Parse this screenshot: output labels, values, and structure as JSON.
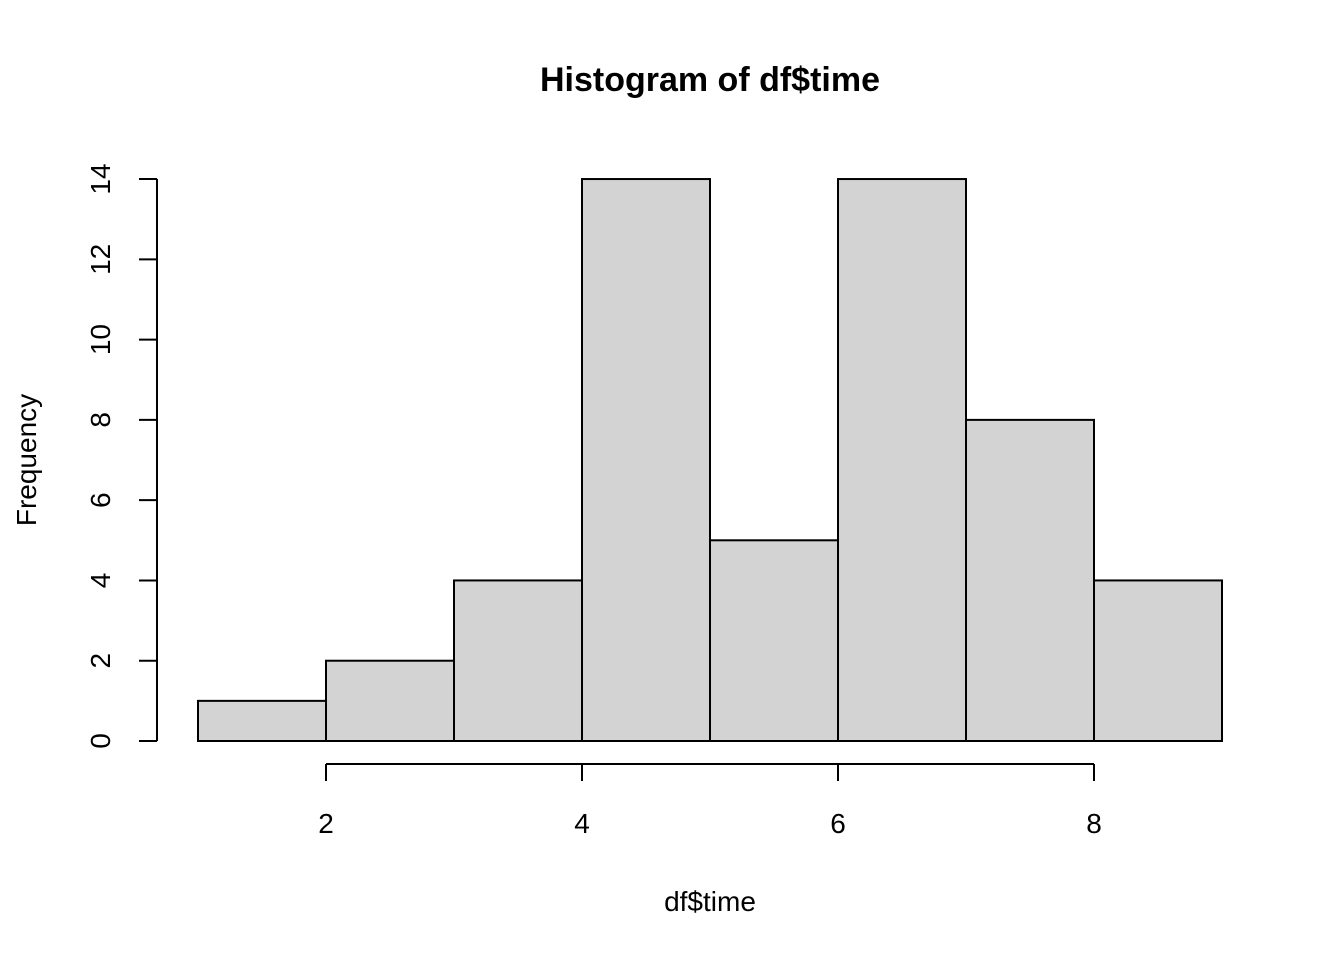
{
  "chart_data": {
    "type": "bar",
    "subtype": "histogram",
    "title": "Histogram of df$time",
    "xlabel": "df$time",
    "ylabel": "Frequency",
    "bins": [
      {
        "x0": 1,
        "x1": 2,
        "count": 1
      },
      {
        "x0": 2,
        "x1": 3,
        "count": 2
      },
      {
        "x0": 3,
        "x1": 4,
        "count": 4
      },
      {
        "x0": 4,
        "x1": 5,
        "count": 14
      },
      {
        "x0": 5,
        "x1": 6,
        "count": 5
      },
      {
        "x0": 6,
        "x1": 7,
        "count": 14
      },
      {
        "x0": 7,
        "x1": 8,
        "count": 8
      },
      {
        "x0": 8,
        "x1": 9,
        "count": 4
      }
    ],
    "xticks": [
      2,
      4,
      6,
      8
    ],
    "yticks": [
      0,
      2,
      4,
      6,
      8,
      10,
      12,
      14
    ],
    "xlim": [
      1,
      9
    ],
    "ylim": [
      0,
      14
    ],
    "bar_fill": "#d3d3d3",
    "bar_stroke": "#000000",
    "grid": false,
    "legend": "none"
  }
}
